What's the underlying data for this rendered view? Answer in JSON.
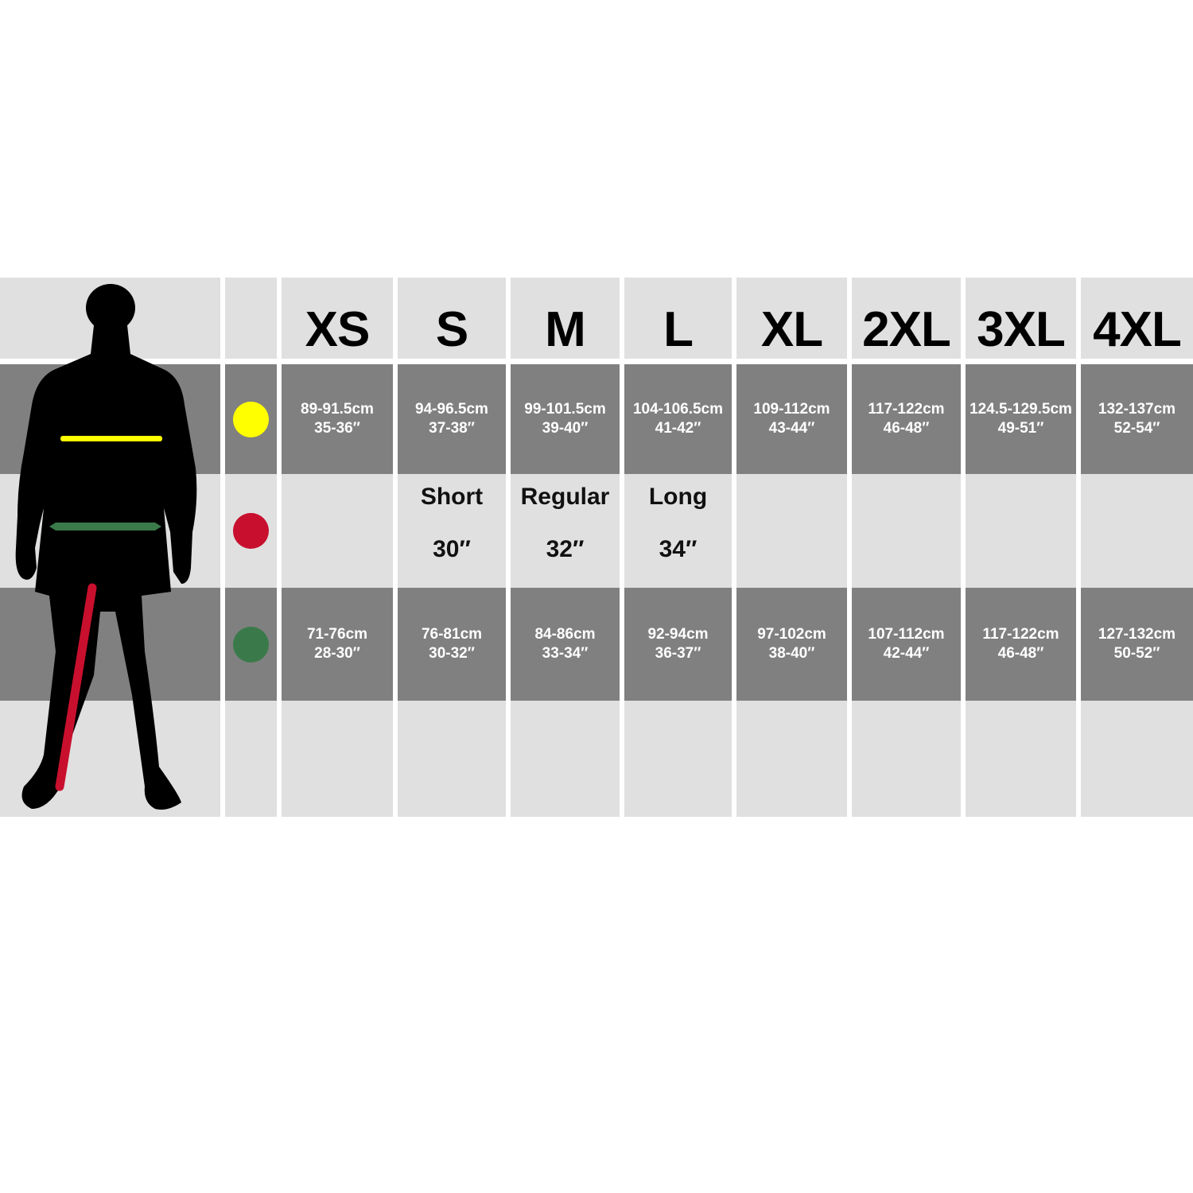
{
  "sizes": [
    "XS",
    "S",
    "M",
    "L",
    "XL",
    "2XL",
    "3XL",
    "4XL"
  ],
  "colors": {
    "chest": "#ffff00",
    "leg": "#c8102e",
    "waist": "#3a7a4a",
    "light": "#e0e0e0",
    "dark": "#808080"
  },
  "rows": {
    "chest": {
      "icon": "yellow-dot-icon",
      "values": [
        {
          "cm": "89-91.5cm",
          "in": "35-36″"
        },
        {
          "cm": "94-96.5cm",
          "in": "37-38″"
        },
        {
          "cm": "99-101.5cm",
          "in": "39-40″"
        },
        {
          "cm": "104-106.5cm",
          "in": "41-42″"
        },
        {
          "cm": "109-112cm",
          "in": "43-44″"
        },
        {
          "cm": "117-122cm",
          "in": "46-48″"
        },
        {
          "cm": "124.5-129.5cm",
          "in": "49-51″"
        },
        {
          "cm": "132-137cm",
          "in": "52-54″"
        }
      ]
    },
    "leg": {
      "icon": "red-dot-icon",
      "values": [
        {
          "name": "",
          "len": ""
        },
        {
          "name": "Short",
          "len": "30″"
        },
        {
          "name": "Regular",
          "len": "32″"
        },
        {
          "name": "Long",
          "len": "34″"
        },
        {
          "name": "",
          "len": ""
        },
        {
          "name": "",
          "len": ""
        },
        {
          "name": "",
          "len": ""
        },
        {
          "name": "",
          "len": ""
        }
      ]
    },
    "waist": {
      "icon": "green-dot-icon",
      "values": [
        {
          "cm": "71-76cm",
          "in": "28-30″"
        },
        {
          "cm": "76-81cm",
          "in": "30-32″"
        },
        {
          "cm": "84-86cm",
          "in": "33-34″"
        },
        {
          "cm": "92-94cm",
          "in": "36-37″"
        },
        {
          "cm": "97-102cm",
          "in": "38-40″"
        },
        {
          "cm": "107-112cm",
          "in": "42-44″"
        },
        {
          "cm": "117-122cm",
          "in": "46-48″"
        },
        {
          "cm": "127-132cm",
          "in": "50-52″"
        }
      ]
    }
  }
}
